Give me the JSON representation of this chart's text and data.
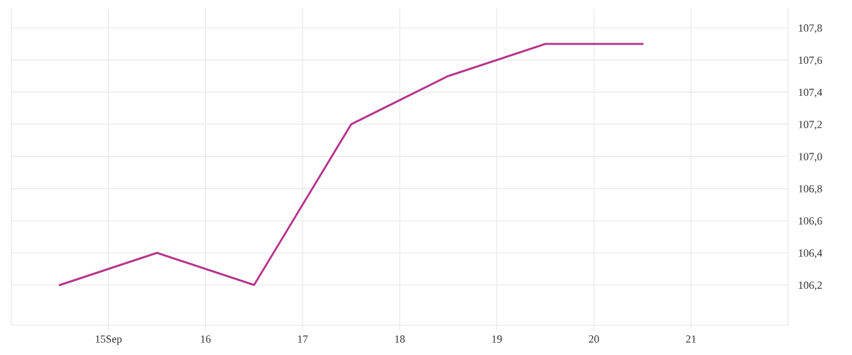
{
  "chart_data": {
    "type": "line",
    "x": [
      14.5,
      15.5,
      16.5,
      17.5,
      18.5,
      19.5,
      20.5
    ],
    "series": [
      {
        "color": "#b5338a",
        "values": [
          106.2,
          106.4,
          106.2,
          107.2,
          107.5,
          107.7,
          107.7
        ]
      }
    ],
    "xlim": [
      14.0,
      22.0
    ],
    "xticks": [
      {
        "value": 15,
        "label": "15Sep"
      },
      16,
      17,
      18,
      19,
      20,
      21
    ],
    "ylim": [
      105.95,
      107.92
    ],
    "yticks": [
      {
        "value": 106.2,
        "label": "106,2"
      },
      {
        "value": 106.4,
        "label": "106,4"
      },
      {
        "value": 106.6,
        "label": "106,6"
      },
      {
        "value": 106.8,
        "label": "106,8"
      },
      {
        "value": 107.0,
        "label": "107,0"
      },
      {
        "value": 107.2,
        "label": "107,2"
      },
      {
        "value": 107.4,
        "label": "107,4"
      },
      {
        "value": 107.6,
        "label": "107,6"
      },
      {
        "value": 107.8,
        "label": "107,8"
      }
    ],
    "grid": true,
    "marker": "none",
    "line_style": "solid"
  }
}
